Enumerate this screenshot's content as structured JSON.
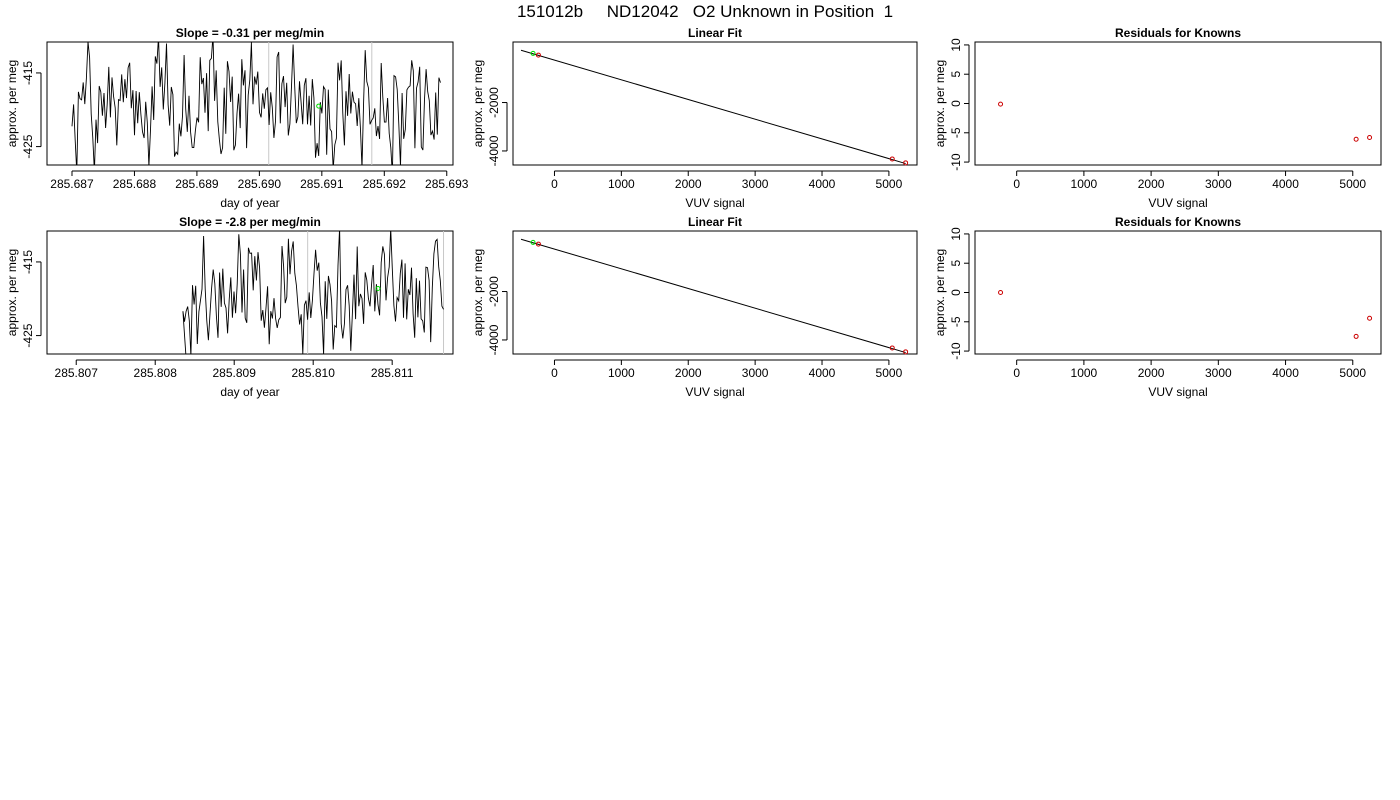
{
  "page": {
    "title": "151012b     ND12042   O2 Unknown in Position  1"
  },
  "chart_data": [
    {
      "id": "ts1",
      "type": "line",
      "title": "Slope =  -0.31  per meg/min",
      "xlabel": "day of year",
      "ylabel": "approx. per meg",
      "xlim": [
        285.6866,
        285.6931
      ],
      "ylim": [
        -427.5,
        -410.8
      ],
      "xticks": [
        285.687,
        285.688,
        285.689,
        285.69,
        285.691,
        285.692,
        285.693
      ],
      "xtick_labels": [
        "285.687",
        "285.688",
        "285.689",
        "285.690",
        "285.691",
        "285.692",
        "285.693"
      ],
      "yticks": [
        -415,
        -425
      ],
      "ytick_labels": [
        "-415",
        "-425"
      ],
      "series": [
        {
          "x_start": 285.687,
          "x_end": 285.6929,
          "y_range": [
            -427.5,
            -410.8
          ],
          "seed": 7,
          "mean": -419.5,
          "spread": 6.0,
          "gap_end": null
        }
      ],
      "vlines": [
        285.69015,
        285.6918
      ],
      "points": [
        {
          "x": 285.69095,
          "y": -419.5,
          "color": "#00dd00"
        }
      ]
    },
    {
      "id": "fit1",
      "type": "scatter",
      "title": "Linear Fit",
      "xlabel": "VUV signal",
      "ylabel": "approx. per meg",
      "xlim": [
        -620,
        5420
      ],
      "ylim": [
        -4580,
        500
      ],
      "xticks": [
        0,
        1000,
        2000,
        3000,
        4000,
        5000
      ],
      "xtick_labels": [
        "0",
        "1000",
        "2000",
        "3000",
        "4000",
        "5000"
      ],
      "yticks": [
        -2000,
        -4000
      ],
      "ytick_labels": [
        "-2000",
        "-4000"
      ],
      "fit_line": {
        "x": [
          -500,
          5250
        ],
        "y": [
          160,
          -4520
        ]
      },
      "points": [
        {
          "x": -320,
          "y": 28,
          "color": "#00dd00"
        },
        {
          "x": -240,
          "y": -40,
          "color": "#cc0000"
        },
        {
          "x": 5050,
          "y": -4330,
          "color": "#cc0000"
        },
        {
          "x": 5250,
          "y": -4490,
          "color": "#cc0000"
        }
      ]
    },
    {
      "id": "res1",
      "type": "scatter",
      "title": "Residuals for Knowns",
      "xlabel": "VUV signal",
      "ylabel": "approx. per meg",
      "xlim": [
        -620,
        5420
      ],
      "ylim": [
        -10.5,
        10.5
      ],
      "xticks": [
        0,
        1000,
        2000,
        3000,
        4000,
        5000
      ],
      "xtick_labels": [
        "0",
        "1000",
        "2000",
        "3000",
        "4000",
        "5000"
      ],
      "yticks": [
        10,
        5,
        0,
        -5,
        -10
      ],
      "ytick_labels": [
        "10",
        "5",
        "0",
        "-5",
        "-10"
      ],
      "points": [
        {
          "x": -240,
          "y": -0.1,
          "color": "#cc0000"
        },
        {
          "x": 5050,
          "y": -6.1,
          "color": "#cc0000"
        },
        {
          "x": 5250,
          "y": -5.8,
          "color": "#cc0000"
        }
      ]
    },
    {
      "id": "ts2",
      "type": "line",
      "title": "Slope =  -2.8  per meg/min",
      "xlabel": "day of year",
      "ylabel": "approx. per meg",
      "xlim": [
        285.80663,
        285.81177
      ],
      "ylim": [
        -427.5,
        -410.8
      ],
      "xticks": [
        285.807,
        285.808,
        285.809,
        285.81,
        285.811
      ],
      "xtick_labels": [
        "285.807",
        "285.808",
        "285.809",
        "285.810",
        "285.811"
      ],
      "yticks": [
        -415,
        -425
      ],
      "ytick_labels": [
        "-415",
        "-425"
      ],
      "series": [
        {
          "x_start": 285.80835,
          "x_end": 285.81165,
          "y_range": [
            -427.5,
            -410.8
          ],
          "seed": 21,
          "mean": -419.0,
          "spread": 6.0,
          "gap_end": 285.8084
        }
      ],
      "vlines": [
        285.80993,
        285.81165
      ],
      "points": [
        {
          "x": 285.81082,
          "y": -418.6,
          "color": "#00dd00"
        }
      ]
    },
    {
      "id": "fit2",
      "type": "scatter",
      "title": "Linear Fit",
      "xlabel": "VUV signal",
      "ylabel": "approx. per meg",
      "xlim": [
        -620,
        5420
      ],
      "ylim": [
        -4580,
        500
      ],
      "xticks": [
        0,
        1000,
        2000,
        3000,
        4000,
        5000
      ],
      "xtick_labels": [
        "0",
        "1000",
        "2000",
        "3000",
        "4000",
        "5000"
      ],
      "yticks": [
        -2000,
        -4000
      ],
      "ytick_labels": [
        "-2000",
        "-4000"
      ],
      "fit_line": {
        "x": [
          -500,
          5250
        ],
        "y": [
          160,
          -4520
        ]
      },
      "points": [
        {
          "x": -320,
          "y": 28,
          "color": "#00dd00"
        },
        {
          "x": -240,
          "y": -40,
          "color": "#cc0000"
        },
        {
          "x": 5050,
          "y": -4330,
          "color": "#cc0000"
        },
        {
          "x": 5250,
          "y": -4490,
          "color": "#cc0000"
        }
      ]
    },
    {
      "id": "res2",
      "type": "scatter",
      "title": "Residuals for Knowns",
      "xlabel": "VUV signal",
      "ylabel": "approx. per meg",
      "xlim": [
        -620,
        5420
      ],
      "ylim": [
        -10.5,
        10.5
      ],
      "xticks": [
        0,
        1000,
        2000,
        3000,
        4000,
        5000
      ],
      "xtick_labels": [
        "0",
        "1000",
        "2000",
        "3000",
        "4000",
        "5000"
      ],
      "yticks": [
        10,
        5,
        0,
        -5,
        -10
      ],
      "ytick_labels": [
        "10",
        "5",
        "0",
        "-5",
        "-10"
      ],
      "points": [
        {
          "x": -240,
          "y": 0.0,
          "color": "#cc0000"
        },
        {
          "x": 5050,
          "y": -7.5,
          "color": "#cc0000"
        },
        {
          "x": 5250,
          "y": -4.4,
          "color": "#cc0000"
        }
      ]
    }
  ]
}
